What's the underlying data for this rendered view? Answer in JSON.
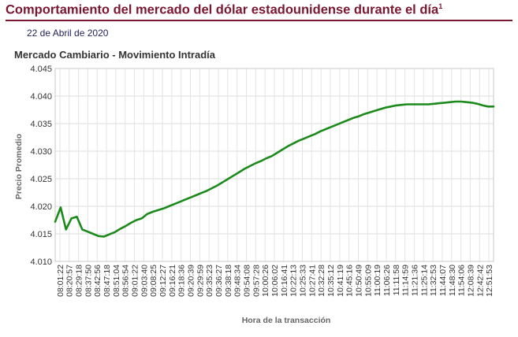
{
  "header": {
    "title": "Comportamiento del mercado del dólar estadounidense durante el día",
    "title_note": "1",
    "date": "22 de Abril de 2020"
  },
  "colors": {
    "title": "#7a1630",
    "line": "#1b8a1b",
    "grid": "#dddddd"
  },
  "chart_data": {
    "type": "line",
    "title": "Mercado Cambiario - Movimiento Intradía",
    "xlabel": "Hora de la transacción",
    "ylabel": "Precio Promedio",
    "ylim": [
      4.01,
      4.045
    ],
    "yticks": [
      "4.045",
      "4.040",
      "4.035",
      "4.030",
      "4.025",
      "4.020",
      "4.015",
      "4.010"
    ],
    "xticks": [
      "08:01:22",
      "08:20:57",
      "08:29:18",
      "08:37:50",
      "08:42:56",
      "08:47:18",
      "08:51:04",
      "08:56:54",
      "09:01:22",
      "09:03:40",
      "09:08:25",
      "09:12:27",
      "09:16:21",
      "09:18:36",
      "09:20:39",
      "09:29:59",
      "09:35:23",
      "09:36:27",
      "09:38:18",
      "09:48:34",
      "09:54:08",
      "09:57:28",
      "10:00:26",
      "10:06:02",
      "10:16:41",
      "10:22:13",
      "10:25:33",
      "10:27:41",
      "10:32:28",
      "10:35:12",
      "10:41:19",
      "10:45:16",
      "10:50:49",
      "10:55:09",
      "11:00:19",
      "11:06:26",
      "11:11:58",
      "11:14:59",
      "11:21:36",
      "11:25:14",
      "11:32:53",
      "11:44:07",
      "11:48:30",
      "11:54:06",
      "12:08:39",
      "12:42:42",
      "12:51:53"
    ],
    "grid": true,
    "series": [
      {
        "values": [
          4.0172,
          4.0198,
          4.0158,
          4.0178,
          4.0181,
          4.0158,
          4.0154,
          4.015,
          4.0146,
          4.0145,
          4.0149,
          4.0153,
          4.0159,
          4.0164,
          4.017,
          4.0175,
          4.0178,
          4.0186,
          4.019,
          4.0193,
          4.0196,
          4.02,
          4.0204,
          4.0208,
          4.0212,
          4.0216,
          4.022,
          4.0224,
          4.0228,
          4.0233,
          4.0238,
          4.0244,
          4.025,
          4.0256,
          4.0262,
          4.0268,
          4.0273,
          4.0278,
          4.0282,
          4.0287,
          4.0291,
          4.0297,
          4.0303,
          4.0309,
          4.0314,
          4.0319,
          4.0323,
          4.0327,
          4.0331,
          4.0336,
          4.034,
          4.0344,
          4.0348,
          4.0352,
          4.0356,
          4.036,
          4.0363,
          4.0367,
          4.037,
          4.0373,
          4.0376,
          4.0379,
          4.0381,
          4.0383,
          4.0384,
          4.0385,
          4.0385,
          4.0385,
          4.0385,
          4.0385,
          4.0386,
          4.0387,
          4.0388,
          4.0389,
          4.039,
          4.039,
          4.0389,
          4.0388,
          4.0386,
          4.0383,
          4.0381,
          4.0381
        ]
      }
    ]
  }
}
